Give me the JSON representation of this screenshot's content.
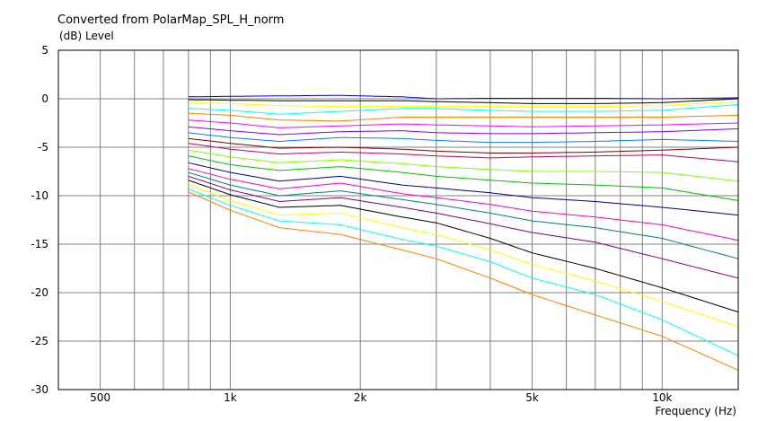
{
  "chart_data": {
    "type": "line",
    "title": "Converted from PolarMap_SPL_H_norm",
    "ylabel": "(dB)  Level",
    "xlabel": "Frequency  (Hz)",
    "xscale": "log",
    "xlim": [
      400,
      15000
    ],
    "ylim": [
      -30,
      5
    ],
    "grid": true,
    "legend": "none",
    "y_ticks": [
      "5",
      "0",
      "-5",
      "-10",
      "-15",
      "-20",
      "-25",
      "-30"
    ],
    "y_tick_values": [
      5,
      0,
      -5,
      -10,
      -15,
      -20,
      -25,
      -30
    ],
    "x_tick_labels": [
      {
        "label": "500",
        "value": 500
      },
      {
        "label": "1k",
        "value": 1000
      },
      {
        "label": "2k",
        "value": 2000
      },
      {
        "label": "5k",
        "value": 5000
      },
      {
        "label": "10k",
        "value": 10000
      }
    ],
    "x_grid_values": [
      500,
      600,
      700,
      800,
      900,
      1000,
      2000,
      3000,
      4000,
      5000,
      6000,
      7000,
      8000,
      9000,
      10000
    ],
    "x": [
      800,
      1000,
      1300,
      1800,
      2500,
      3000,
      4000,
      5000,
      7000,
      10000,
      15000
    ],
    "series": [
      {
        "color": "#0000ff",
        "values": [
          0.2,
          0.25,
          0.3,
          0.35,
          0.2,
          0.0,
          0.05,
          0.05,
          0.05,
          0.0,
          0.1
        ]
      },
      {
        "color": "#000000",
        "values": [
          -0.1,
          -0.15,
          -0.2,
          -0.2,
          -0.2,
          -0.3,
          -0.4,
          -0.5,
          -0.5,
          -0.4,
          0.0
        ]
      },
      {
        "color": "#ffff00",
        "values": [
          -0.4,
          -0.5,
          -0.7,
          -0.8,
          -0.8,
          -0.8,
          -0.8,
          -0.8,
          -0.8,
          -0.7,
          -0.3
        ]
      },
      {
        "color": "#00ffff",
        "values": [
          -1.0,
          -1.2,
          -1.6,
          -1.3,
          -1.0,
          -1.0,
          -1.2,
          -1.3,
          -1.3,
          -1.2,
          -0.6
        ]
      },
      {
        "color": "#ff8000",
        "values": [
          -1.5,
          -1.7,
          -2.2,
          -2.3,
          -1.9,
          -1.9,
          -1.9,
          -1.9,
          -1.9,
          -1.9,
          -1.7
        ]
      },
      {
        "color": "#ff00ff",
        "values": [
          -2.2,
          -2.5,
          -3.0,
          -2.8,
          -2.6,
          -2.7,
          -2.8,
          -2.9,
          -2.8,
          -2.7,
          -2.5
        ]
      },
      {
        "color": "#8000ff",
        "values": [
          -2.9,
          -3.3,
          -3.7,
          -3.4,
          -3.3,
          -3.5,
          -3.6,
          -3.6,
          -3.5,
          -3.4,
          -3.1
        ]
      },
      {
        "color": "#0080ff",
        "values": [
          -3.5,
          -4.0,
          -4.4,
          -4.0,
          -4.1,
          -4.3,
          -4.5,
          -4.5,
          -4.4,
          -4.2,
          -4.4
        ]
      },
      {
        "color": "#800000",
        "values": [
          -4.1,
          -4.6,
          -5.1,
          -5.0,
          -5.2,
          -5.4,
          -5.6,
          -5.6,
          -5.5,
          -5.3,
          -5.0
        ]
      },
      {
        "color": "#c00060",
        "values": [
          -4.6,
          -5.2,
          -5.7,
          -5.5,
          -5.7,
          -5.9,
          -6.1,
          -6.0,
          -5.9,
          -5.8,
          -6.5
        ]
      },
      {
        "color": "#80ff00",
        "values": [
          -5.3,
          -6.0,
          -6.6,
          -6.3,
          -6.7,
          -7.0,
          -7.3,
          -7.5,
          -7.5,
          -7.6,
          -8.5
        ]
      },
      {
        "color": "#00c000",
        "values": [
          -5.9,
          -6.8,
          -7.4,
          -7.0,
          -7.6,
          -8.0,
          -8.4,
          -8.7,
          -8.9,
          -9.2,
          -10.5
        ]
      },
      {
        "color": "#000080",
        "values": [
          -6.6,
          -7.6,
          -8.5,
          -8.0,
          -8.9,
          -9.2,
          -9.7,
          -10.2,
          -10.6,
          -11.2,
          -12.0
        ]
      },
      {
        "color": "#ff00c0",
        "values": [
          -7.2,
          -8.3,
          -9.3,
          -8.7,
          -9.8,
          -10.2,
          -10.9,
          -11.6,
          -12.2,
          -13.0,
          -14.6
        ]
      },
      {
        "color": "#008080",
        "values": [
          -7.6,
          -8.9,
          -10.0,
          -9.5,
          -10.4,
          -10.9,
          -11.8,
          -12.6,
          -13.3,
          -14.4,
          -16.5
        ]
      },
      {
        "color": "#800080",
        "values": [
          -8.0,
          -9.4,
          -10.6,
          -10.2,
          -11.2,
          -11.8,
          -12.9,
          -13.8,
          -14.8,
          -16.5,
          -18.5
        ]
      },
      {
        "color": "#000000",
        "values": [
          -8.4,
          -9.9,
          -11.2,
          -11.0,
          -12.2,
          -12.8,
          -14.4,
          -15.9,
          -17.5,
          -19.5,
          -22.0
        ]
      },
      {
        "color": "#ffff00",
        "values": [
          -8.9,
          -10.5,
          -12.0,
          -11.8,
          -13.3,
          -14.0,
          -15.6,
          -17.1,
          -18.8,
          -20.9,
          -23.5
        ]
      },
      {
        "color": "#00ffff",
        "values": [
          -9.3,
          -11.0,
          -12.6,
          -13.0,
          -14.5,
          -15.2,
          -16.8,
          -18.5,
          -20.2,
          -22.8,
          -26.5
        ]
      },
      {
        "color": "#ff8000",
        "values": [
          -9.6,
          -11.5,
          -13.3,
          -14.0,
          -15.6,
          -16.5,
          -18.5,
          -20.2,
          -22.3,
          -24.5,
          -28.0
        ]
      }
    ]
  }
}
